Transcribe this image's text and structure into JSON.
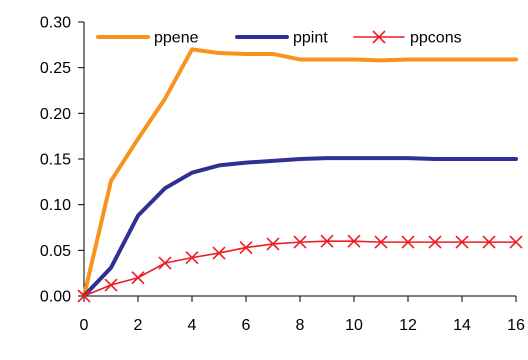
{
  "chart_data": {
    "type": "line",
    "title": "",
    "xlabel": "",
    "ylabel": "",
    "xlim": [
      0,
      16
    ],
    "ylim": [
      0,
      0.3
    ],
    "x_ticks": [
      "0",
      "2",
      "4",
      "6",
      "8",
      "10",
      "12",
      "14",
      "16"
    ],
    "y_ticks": [
      "0.00",
      "0.05",
      "0.10",
      "0.15",
      "0.20",
      "0.25",
      "0.30"
    ],
    "grid": false,
    "legend_position": "top",
    "x": [
      0,
      1,
      2,
      3,
      4,
      5,
      6,
      7,
      8,
      9,
      10,
      11,
      12,
      13,
      14,
      15,
      16
    ],
    "series": [
      {
        "name": "ppene",
        "color": "#f7941d",
        "marker": "none",
        "values": [
          0.0,
          0.126,
          0.172,
          0.216,
          0.27,
          0.266,
          0.265,
          0.265,
          0.259,
          0.259,
          0.259,
          0.258,
          0.259,
          0.259,
          0.259,
          0.259,
          0.259
        ]
      },
      {
        "name": "ppint",
        "color": "#2e3192",
        "marker": "none",
        "values": [
          0.0,
          0.031,
          0.088,
          0.118,
          0.135,
          0.143,
          0.146,
          0.148,
          0.15,
          0.151,
          0.151,
          0.151,
          0.151,
          0.15,
          0.15,
          0.15,
          0.15
        ]
      },
      {
        "name": "ppcons",
        "color": "#ed1c24",
        "marker": "x",
        "values": [
          0.0,
          0.012,
          0.02,
          0.036,
          0.042,
          0.047,
          0.053,
          0.057,
          0.059,
          0.06,
          0.06,
          0.059,
          0.059,
          0.059,
          0.059,
          0.059,
          0.059
        ]
      }
    ]
  }
}
